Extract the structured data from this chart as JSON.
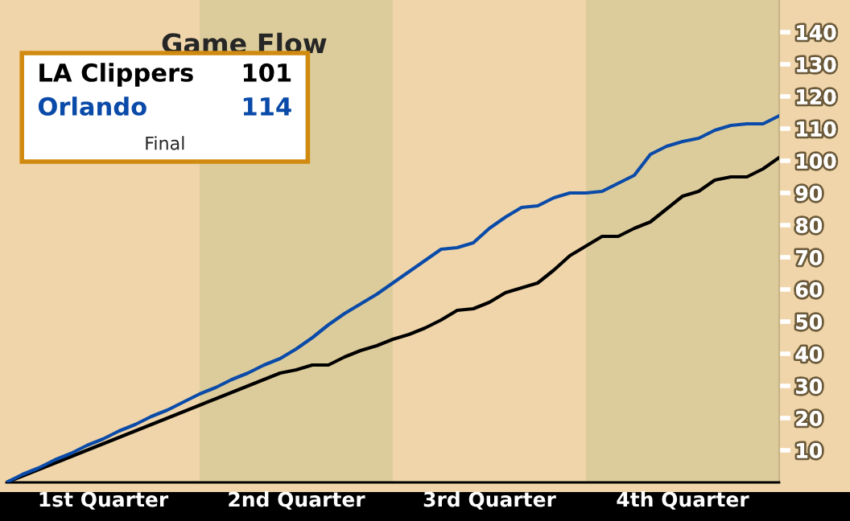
{
  "chart_data": {
    "type": "line",
    "title": "Game Flow",
    "categories": [
      null,
      null,
      null,
      null,
      null,
      null,
      "1st Quarter",
      null,
      null,
      null,
      null,
      null,
      null,
      null,
      null,
      null,
      null,
      null,
      "2nd Quarter",
      null,
      null,
      null,
      null,
      null,
      null,
      null,
      null,
      null,
      null,
      null,
      "3rd Quarter",
      null,
      null,
      null,
      null,
      null,
      null,
      null,
      null,
      null,
      null,
      null,
      "4th Quarter",
      null,
      null,
      null,
      null,
      null,
      null
    ],
    "series": [
      {
        "name": "LA Clippers",
        "color": "#000000",
        "values": [
          0,
          2,
          4,
          6,
          8,
          10,
          12,
          14,
          16,
          18,
          20,
          22,
          24,
          26,
          28,
          30,
          32,
          34,
          35,
          36.5,
          36.5,
          39,
          41,
          42.5,
          44.5,
          46,
          48,
          50.5,
          53.5,
          54,
          56,
          59,
          60.5,
          62,
          66,
          70.5,
          73.5,
          76.5,
          76.5,
          79,
          81,
          85,
          89,
          90.5,
          94,
          95,
          95,
          97.5,
          101
        ]
      },
      {
        "name": "Orlando",
        "color": "#0a4aa8",
        "values": [
          0,
          2.5,
          4.5,
          7,
          9,
          11.5,
          13.5,
          16,
          18,
          20.5,
          22.5,
          25,
          27.5,
          29.5,
          32,
          34,
          36.5,
          38.5,
          41.5,
          45,
          49,
          52.5,
          55.5,
          58.5,
          62,
          65.5,
          69,
          72.5,
          73,
          74.5,
          79,
          82.5,
          85.5,
          86,
          88.5,
          90,
          90,
          90.5,
          93,
          95.5,
          102,
          104.5,
          106,
          107,
          109.5,
          111,
          111.5,
          111.5,
          114
        ]
      }
    ],
    "annotations": [
      "101",
      "114",
      "Final"
    ],
    "legend": "top left",
    "ylim": [
      0,
      150
    ],
    "yticks": [
      10,
      20,
      30,
      40,
      50,
      60,
      70,
      80,
      90,
      100,
      110,
      120,
      130,
      140
    ],
    "grid": false,
    "line_style": "solid",
    "marker": "none"
  }
}
